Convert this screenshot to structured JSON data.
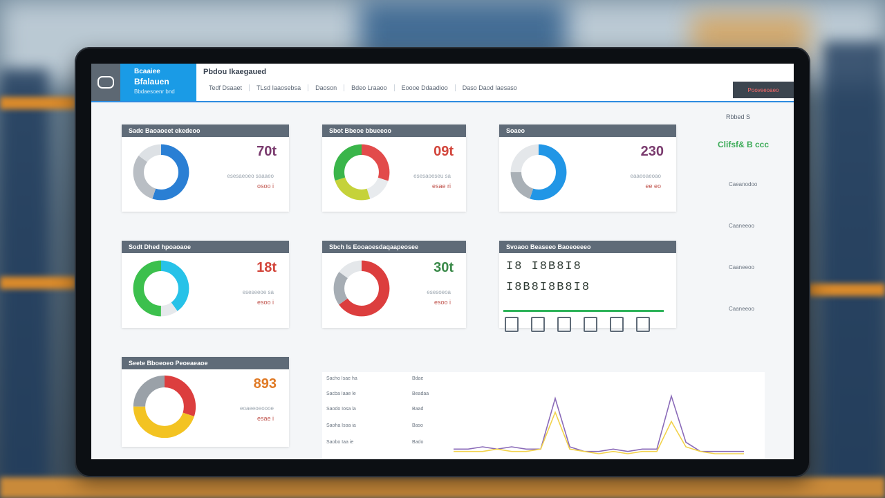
{
  "header": {
    "brand_line1": "Bcaaiee",
    "brand_line2": "Bfalauen",
    "brand_line3": "Bbdaesoenr bnd",
    "page_title": "Pbdou Ikaegaued",
    "nav": [
      "Tedf Dsaaet",
      "TLsd Iaaosebsa",
      "Daoson",
      "Bdeo Lraaoo",
      "Eoooe Ddaadioo",
      "Daso Daod Iaesaso"
    ],
    "action_button": "Pooveeoaeo"
  },
  "side_panel": {
    "head": "Rbbed S",
    "status": "Clifsf& B ccc",
    "items": [
      "Caeanodoo",
      "Caaneeoo",
      "Caaneeoo",
      "Caaneeoo"
    ]
  },
  "cards": [
    {
      "title": "Sadc Baoaoeet ekedeoo",
      "value": "70t",
      "value_color": "#7a3b6e",
      "sub1": "esesaeoeo saaaeo",
      "sub2": "osoo i",
      "sub2_color": "#c0544d"
    },
    {
      "title": "Sbot Bbeoe bbueeoo",
      "value": "09t",
      "value_color": "#d2453b",
      "sub1": "esesaoeseu sa",
      "sub2": "esae ri",
      "sub2_color": "#c0544d"
    },
    {
      "title": "Soaeo",
      "value": "230",
      "value_color": "#7a3b6e",
      "sub1": "eaaeoaeoao",
      "sub2": "ee eo",
      "sub2_color": "#c0544d"
    },
    {
      "title": "Sodt Dhed hpoaoaoe",
      "value": "18t",
      "value_color": "#d2453b",
      "sub1": "eseseeoe sa",
      "sub2": "esoo i",
      "sub2_color": "#c0544d"
    },
    {
      "title": "Sbch Is Eooaoesdaqaapeosee",
      "value": "30t",
      "value_color": "#3b8a4a",
      "sub1": "esesoeoa",
      "sub2": "esoo i",
      "sub2_color": "#c0544d"
    },
    {
      "title": "Seete Bboeoeo Peoeaeaoe",
      "value": "893",
      "value_color": "#e07a25",
      "sub1": "eoaeeoeoooe",
      "sub2": "esae i",
      "sub2_color": "#c0544d"
    }
  ],
  "detail_card": {
    "title": "Svoaoo Beaseeo Baoeoeeeo",
    "row1": "I8 I8B8I8",
    "row2": "I8B8I8B8I8"
  },
  "chart_legend": [
    {
      "label": "Sacho Isae ha",
      "value": "Bdae"
    },
    {
      "label": "Sacba Iaae le",
      "value": "Beadaa"
    },
    {
      "label": "Saodo Iosa la",
      "value": "Baad"
    },
    {
      "label": "Saoha Isoa ia",
      "value": "Baso"
    },
    {
      "label": "Saobo Iaa ie",
      "value": "Bado"
    }
  ],
  "chart_data": {
    "type": "line",
    "x": [
      0,
      1,
      2,
      3,
      4,
      5,
      6,
      7,
      8,
      9,
      10,
      11,
      12,
      13,
      14,
      15,
      16,
      17,
      18,
      19,
      20
    ],
    "series": [
      {
        "values": [
          2,
          2,
          3,
          2,
          3,
          2,
          2,
          24,
          3,
          1,
          1,
          2,
          1,
          2,
          2,
          25,
          5,
          1,
          1,
          1,
          1
        ],
        "color": "#8a6ab8"
      },
      {
        "values": [
          1,
          1,
          1,
          2,
          1,
          1,
          2,
          18,
          2,
          1,
          0,
          1,
          0,
          1,
          1,
          14,
          3,
          1,
          0,
          0,
          0
        ],
        "color": "#f2d24a"
      }
    ],
    "ylim": [
      0,
      30
    ]
  },
  "donuts": [
    {
      "segments": [
        {
          "v": 55,
          "c": "#2a7fd4"
        },
        {
          "v": 30,
          "c": "#b9bec4"
        },
        {
          "v": 15,
          "c": "#dde1e5"
        }
      ]
    },
    {
      "segments": [
        {
          "v": 30,
          "c": "#e24b4b"
        },
        {
          "v": 15,
          "c": "#e8ebee"
        },
        {
          "v": 25,
          "c": "#c5d23a"
        },
        {
          "v": 30,
          "c": "#3ab54a"
        }
      ]
    },
    {
      "segments": [
        {
          "v": 55,
          "c": "#2196e6"
        },
        {
          "v": 20,
          "c": "#a9b0b6"
        },
        {
          "v": 25,
          "c": "#e4e7ea"
        }
      ]
    },
    {
      "segments": [
        {
          "v": 40,
          "c": "#27c2e8"
        },
        {
          "v": 10,
          "c": "#e6e9ec"
        },
        {
          "v": 50,
          "c": "#3cc04d"
        }
      ]
    },
    {
      "segments": [
        {
          "v": 65,
          "c": "#dc3e3e"
        },
        {
          "v": 20,
          "c": "#a6adb4"
        },
        {
          "v": 15,
          "c": "#e4e7ea"
        }
      ]
    },
    {
      "segments": [
        {
          "v": 30,
          "c": "#dc3e3e"
        },
        {
          "v": 45,
          "c": "#f3c322"
        },
        {
          "v": 25,
          "c": "#9aa1a8"
        }
      ]
    }
  ]
}
